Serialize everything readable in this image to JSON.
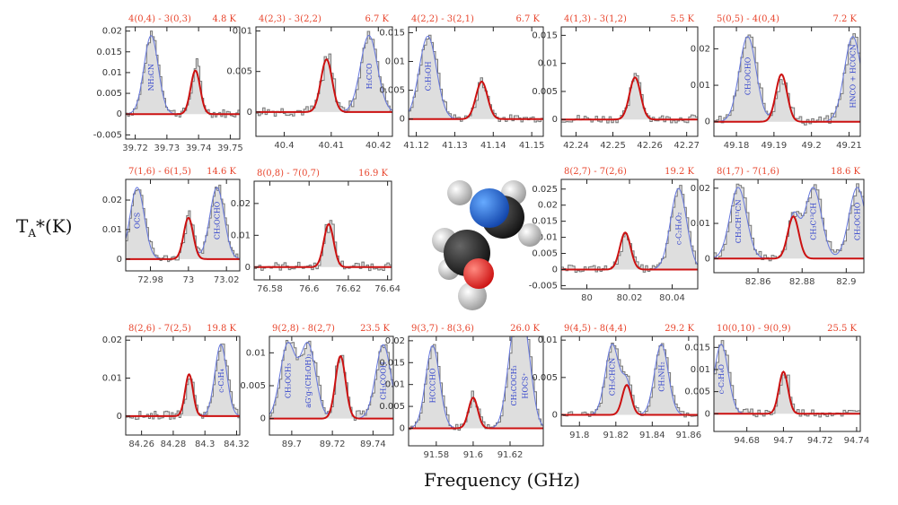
{
  "figure": {
    "ylabel_main": "T",
    "ylabel_sub": "A",
    "ylabel_tail": "*(K)",
    "xlabel": "Frequency (GHz)",
    "colors": {
      "model": "#cc1111",
      "label": "#e8462e",
      "species": "#3344cc",
      "fill": "#dedede",
      "obs": "#777777"
    }
  },
  "chart_data": [
    {
      "type": "line",
      "title": "4(0,4) - 3(0,3)",
      "temp": "4.8 K",
      "xticks": [
        39.72,
        39.73,
        39.74,
        39.75
      ],
      "xlim": [
        39.717,
        39.753
      ],
      "yticks": [
        -0.005,
        0,
        0.005,
        0.01,
        0.015,
        0.02
      ],
      "ylim": [
        -0.006,
        0.021
      ],
      "peak": 39.739,
      "amp": 0.0105,
      "width": 0.0015,
      "species": [
        {
          "text": "NH₂CN",
          "x": 39.725
        }
      ]
    },
    {
      "type": "line",
      "title": "4(2,3) - 3(2,2)",
      "temp": "6.7 K",
      "xticks": [
        40.4,
        40.41,
        40.42
      ],
      "xlim": [
        40.394,
        40.423
      ],
      "yticks": [
        0,
        0.005,
        0.01
      ],
      "ylim": [
        -0.003,
        0.0105
      ],
      "peak": 40.409,
      "amp": 0.0065,
      "width": 0.0012,
      "species": [
        {
          "text": "H₂CCO",
          "x": 40.418
        }
      ]
    },
    {
      "type": "line",
      "title": "4(2,2) - 3(2,1)",
      "temp": "6.7 K",
      "xticks": [
        41.12,
        41.13,
        41.14,
        41.15
      ],
      "xlim": [
        41.118,
        41.153
      ],
      "yticks": [
        0,
        0.005,
        0.01,
        0.015
      ],
      "ylim": [
        -0.003,
        0.016
      ],
      "peak": 41.137,
      "amp": 0.0065,
      "width": 0.0015,
      "species": [
        {
          "text": "C₂H₅OH",
          "x": 41.123
        }
      ]
    },
    {
      "type": "line",
      "title": "4(1,3) - 3(1,2)",
      "temp": "5.5 K",
      "xticks": [
        42.24,
        42.25,
        42.26,
        42.27
      ],
      "xlim": [
        42.236,
        42.273
      ],
      "yticks": [
        0,
        0.005,
        0.01,
        0.015
      ],
      "ylim": [
        -0.003,
        0.0165
      ],
      "peak": 42.256,
      "amp": 0.0075,
      "width": 0.0015,
      "species": []
    },
    {
      "type": "line",
      "title": "5(0,5) - 4(0,4)",
      "temp": "7.2 K",
      "xticks": [
        49.18,
        49.19,
        49.2,
        49.21
      ],
      "xlim": [
        49.174,
        49.213
      ],
      "yticks": [
        0,
        0.01,
        0.02
      ],
      "ylim": [
        -0.004,
        0.026
      ],
      "peak": 49.192,
      "amp": 0.013,
      "width": 0.0015,
      "species": [
        {
          "text": "CH₃OCHO",
          "x": 49.183
        },
        {
          "text": "HNCO + HCOCN",
          "x": 49.211
        }
      ]
    },
    {
      "type": "line",
      "title": "7(1,6) - 6(1,5)",
      "temp": "14.6 K",
      "xticks": [
        72.98,
        73,
        73.02
      ],
      "xlim": [
        72.967,
        73.027
      ],
      "yticks": [
        0,
        0.01,
        0.02
      ],
      "ylim": [
        -0.004,
        0.027
      ],
      "peak": 73.0,
      "amp": 0.014,
      "width": 0.0025,
      "species": [
        {
          "text": "OCS",
          "x": 72.973
        },
        {
          "text": "CH₃OCHO",
          "x": 73.015
        }
      ]
    },
    {
      "type": "line",
      "title": "8(0,8) - 7(0,7)",
      "temp": "16.9 K",
      "xticks": [
        76.58,
        76.6,
        76.62,
        76.64
      ],
      "xlim": [
        76.572,
        76.642
      ],
      "yticks": [
        0,
        0.01,
        0.02
      ],
      "ylim": [
        -0.004,
        0.027
      ],
      "peak": 76.61,
      "amp": 0.0135,
      "width": 0.0025,
      "species": []
    },
    {
      "type": "line",
      "title": "8(2,7) - 7(2,6)",
      "temp": "19.2 K",
      "xticks": [
        80,
        80.02,
        80.04
      ],
      "xlim": [
        79.988,
        80.052
      ],
      "yticks": [
        -0.005,
        0,
        0.005,
        0.01,
        0.015,
        0.02,
        0.025
      ],
      "ylim": [
        -0.006,
        0.028
      ],
      "peak": 80.018,
      "amp": 0.0115,
      "width": 0.0025,
      "species": [
        {
          "text": "c-C₂H₄O₂",
          "x": 80.043
        }
      ]
    },
    {
      "type": "line",
      "title": "8(1,7) - 7(1,6)",
      "temp": "18.6 K",
      "xticks": [
        82.86,
        82.88,
        82.9
      ],
      "xlim": [
        82.84,
        82.908
      ],
      "yticks": [
        0,
        0.01,
        0.02
      ],
      "ylim": [
        -0.004,
        0.0225
      ],
      "peak": 82.876,
      "amp": 0.012,
      "width": 0.0025,
      "species": [
        {
          "text": "CH₃CH¹³CN",
          "x": 82.851
        },
        {
          "text": "CH₃C¹³CH",
          "x": 82.885
        },
        {
          "text": "CH₂OCHO",
          "x": 82.905
        }
      ]
    },
    {
      "type": "line",
      "title": "8(2,6) - 7(2,5)",
      "temp": "19.8 K",
      "xticks": [
        84.26,
        84.28,
        84.3,
        84.32
      ],
      "xlim": [
        84.25,
        84.322
      ],
      "yticks": [
        0,
        0.01,
        0.02
      ],
      "ylim": [
        -0.005,
        0.021
      ],
      "peak": 84.29,
      "amp": 0.011,
      "width": 0.0025,
      "species": [
        {
          "text": "c-C₃H₄",
          "x": 84.31
        }
      ]
    },
    {
      "type": "line",
      "title": "9(2,8) - 8(2,7)",
      "temp": "23.5 K",
      "xticks": [
        89.7,
        89.72,
        89.74
      ],
      "xlim": [
        89.689,
        89.75
      ],
      "yticks": [
        0,
        0.005,
        0.01
      ],
      "ylim": [
        -0.0025,
        0.0125
      ],
      "peak": 89.724,
      "amp": 0.0095,
      "width": 0.0025,
      "species": [
        {
          "text": "CH₃OCH₃",
          "x": 89.698
        },
        {
          "text": "aG'g-(CH₂OH)₂",
          "x": 89.708
        },
        {
          "text": "CH₃COOH",
          "x": 89.745
        }
      ]
    },
    {
      "type": "line",
      "title": "9(3,7) - 8(3,6)",
      "temp": "26.0 K",
      "xticks": [
        91.58,
        91.6,
        91.62
      ],
      "xlim": [
        91.565,
        91.638
      ],
      "yticks": [
        0,
        0.005,
        0.01,
        0.015,
        0.02
      ],
      "ylim": [
        -0.004,
        0.021
      ],
      "peak": 91.6,
      "amp": 0.007,
      "width": 0.0025,
      "species": [
        {
          "text": "HCCCHO",
          "x": 91.578
        },
        {
          "text": "CH₃COCH₃",
          "x": 91.622
        },
        {
          "text": "HOCS⁺",
          "x": 91.628
        }
      ]
    },
    {
      "type": "line",
      "title": "9(4,5) - 8(4,4)",
      "temp": "29.2 K",
      "xticks": [
        91.8,
        91.82,
        91.84,
        91.86
      ],
      "xlim": [
        91.79,
        91.865
      ],
      "yticks": [
        0,
        0.005,
        0.01
      ],
      "ylim": [
        -0.0015,
        0.0105
      ],
      "peak": 91.826,
      "amp": 0.004,
      "width": 0.0025,
      "species": [
        {
          "text": "CH₃CHCN",
          "x": 91.818
        },
        {
          "text": "CH₃NH₂",
          "x": 91.845
        }
      ]
    },
    {
      "type": "line",
      "title": "10(0,10) - 9(0,9)",
      "temp": "25.5 K",
      "xticks": [
        94.68,
        94.7,
        94.72,
        94.74
      ],
      "xlim": [
        94.662,
        94.742
      ],
      "yticks": [
        0,
        0.005,
        0.01,
        0.015
      ],
      "ylim": [
        -0.004,
        0.0175
      ],
      "peak": 94.7,
      "amp": 0.0095,
      "width": 0.0025,
      "species": [
        {
          "text": "c-C₂H₄O",
          "x": 94.666
        }
      ]
    }
  ]
}
